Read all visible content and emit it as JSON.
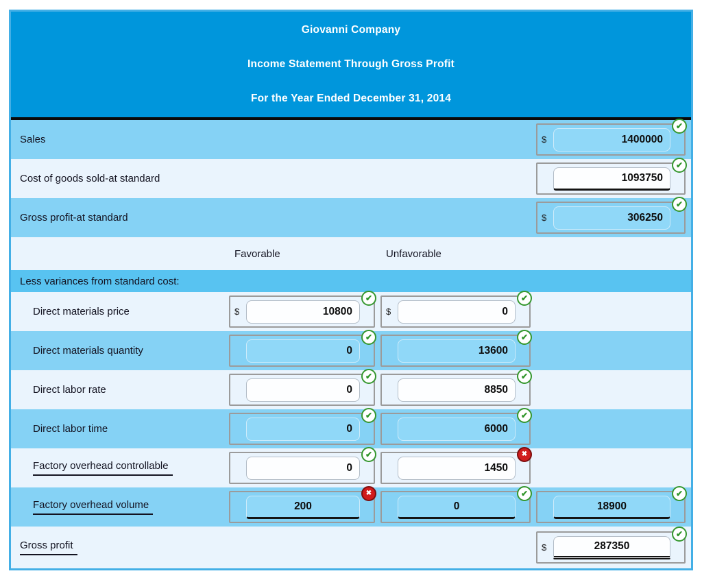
{
  "header": {
    "company": "Giovanni Company",
    "statement": "Income Statement Through Gross Profit",
    "period": "For the Year Ended December 31, 2014"
  },
  "currency_symbol": "$",
  "icons": {
    "correct_name": "green-check-circle",
    "incorrect_name": "red-x-circle",
    "correct_glyph": "✔",
    "incorrect_glyph": "✖"
  },
  "colors": {
    "header_bg": "#0096dc",
    "row_blue": "#85d2f5",
    "row_light": "#eaf4fd",
    "row_medium": "#58c3f1",
    "table_border": "#43afe6",
    "input_blue_fill": "#90d8f8",
    "correct_green": "#35972e",
    "incorrect_red": "#d11c1c"
  },
  "rows": [
    {
      "type": "item",
      "label": "Sales",
      "bg": "blue",
      "indent": false,
      "underline_label": false,
      "cells": {
        "amount": {
          "dollar": true,
          "value": "1400000",
          "fill": "blue",
          "underline": "none",
          "align": "right",
          "status": "correct"
        }
      }
    },
    {
      "type": "item",
      "label": "Cost of goods sold-at standard",
      "bg": "light",
      "indent": false,
      "underline_label": false,
      "cells": {
        "amount": {
          "dollar": false,
          "value": "1093750",
          "fill": "white",
          "underline": "single",
          "align": "right",
          "status": "correct"
        }
      }
    },
    {
      "type": "item",
      "label": "Gross profit-at standard",
      "bg": "blue",
      "indent": false,
      "underline_label": false,
      "cells": {
        "amount": {
          "dollar": true,
          "value": "306250",
          "fill": "blue",
          "underline": "none",
          "align": "right",
          "status": "correct"
        }
      }
    },
    {
      "type": "colheader",
      "bg": "light",
      "favorable_label": "Favorable",
      "unfavorable_label": "Unfavorable"
    },
    {
      "type": "section",
      "label": "Less variances from standard cost:",
      "bg": "medium"
    },
    {
      "type": "item",
      "label": "Direct materials price",
      "bg": "light",
      "indent": true,
      "underline_label": false,
      "cells": {
        "favorable": {
          "dollar": true,
          "value": "10800",
          "fill": "white",
          "underline": "none",
          "align": "right",
          "status": "correct"
        },
        "unfavorable": {
          "dollar": true,
          "value": "0",
          "fill": "white",
          "underline": "none",
          "align": "right",
          "status": "correct"
        }
      }
    },
    {
      "type": "item",
      "label": "Direct materials quantity",
      "bg": "blue",
      "indent": true,
      "underline_label": false,
      "cells": {
        "favorable": {
          "dollar": false,
          "value": "0",
          "fill": "blue",
          "underline": "none",
          "align": "right",
          "status": "correct"
        },
        "unfavorable": {
          "dollar": false,
          "value": "13600",
          "fill": "blue",
          "underline": "none",
          "align": "right",
          "status": "correct"
        }
      }
    },
    {
      "type": "item",
      "label": "Direct labor rate",
      "bg": "light",
      "indent": true,
      "underline_label": false,
      "cells": {
        "favorable": {
          "dollar": false,
          "value": "0",
          "fill": "white",
          "underline": "none",
          "align": "right",
          "status": "correct"
        },
        "unfavorable": {
          "dollar": false,
          "value": "8850",
          "fill": "white",
          "underline": "none",
          "align": "right",
          "status": "correct"
        }
      }
    },
    {
      "type": "item",
      "label": "Direct labor time",
      "bg": "blue",
      "indent": true,
      "underline_label": false,
      "cells": {
        "favorable": {
          "dollar": false,
          "value": "0",
          "fill": "blue",
          "underline": "none",
          "align": "right",
          "status": "correct"
        },
        "unfavorable": {
          "dollar": false,
          "value": "6000",
          "fill": "blue",
          "underline": "none",
          "align": "right",
          "status": "correct"
        }
      }
    },
    {
      "type": "item",
      "label": "Factory overhead controllable",
      "bg": "light",
      "indent": true,
      "underline_label": true,
      "cells": {
        "favorable": {
          "dollar": false,
          "value": "0",
          "fill": "white",
          "underline": "none",
          "align": "right",
          "status": "correct"
        },
        "unfavorable": {
          "dollar": false,
          "value": "1450",
          "fill": "white",
          "underline": "none",
          "align": "right",
          "status": "incorrect"
        }
      }
    },
    {
      "type": "item",
      "label": "Factory overhead volume",
      "bg": "blue",
      "indent": true,
      "underline_label": true,
      "cells": {
        "favorable": {
          "dollar": false,
          "value": "200",
          "fill": "blue",
          "underline": "single",
          "align": "center",
          "status": "incorrect"
        },
        "unfavorable": {
          "dollar": false,
          "value": "0",
          "fill": "blue",
          "underline": "single",
          "align": "center",
          "status": "correct"
        },
        "amount": {
          "dollar": false,
          "value": "18900",
          "fill": "blue",
          "underline": "single",
          "align": "center",
          "status": "correct"
        }
      }
    },
    {
      "type": "item",
      "label": "Gross profit",
      "bg": "light",
      "indent": false,
      "underline_label": true,
      "tall": true,
      "cells": {
        "amount": {
          "dollar": true,
          "value": "287350",
          "fill": "white",
          "underline": "double",
          "align": "center",
          "status": "correct"
        }
      }
    }
  ]
}
